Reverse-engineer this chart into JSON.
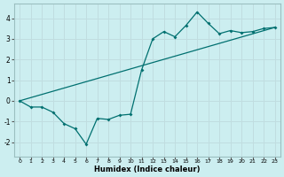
{
  "xlabel": "Humidex (Indice chaleur)",
  "background_color": "#cceef0",
  "line_color": "#007070",
  "grid_color": "#c0dde0",
  "xlim": [
    -0.5,
    23.5
  ],
  "ylim": [
    -2.7,
    4.7
  ],
  "yticks": [
    -2,
    -1,
    0,
    1,
    2,
    3,
    4
  ],
  "xticks": [
    0,
    1,
    2,
    3,
    4,
    5,
    6,
    7,
    8,
    9,
    10,
    11,
    12,
    13,
    14,
    15,
    16,
    17,
    18,
    19,
    20,
    21,
    22,
    23
  ],
  "line1_x": [
    0,
    1,
    2,
    3,
    4,
    5,
    6,
    7,
    8,
    9,
    10,
    11,
    12,
    13,
    14,
    15,
    16,
    17,
    18,
    19,
    20,
    21,
    22,
    23
  ],
  "line1_y": [
    0.0,
    -0.3,
    -0.3,
    -0.55,
    -1.1,
    -1.35,
    -2.1,
    -0.85,
    -0.9,
    -0.7,
    -0.65,
    1.5,
    3.0,
    3.35,
    3.1,
    3.65,
    4.3,
    3.75,
    3.25,
    3.4,
    3.3,
    3.35,
    3.5,
    3.55
  ],
  "line2_x": [
    0,
    23
  ],
  "line2_y": [
    0.0,
    3.55
  ]
}
